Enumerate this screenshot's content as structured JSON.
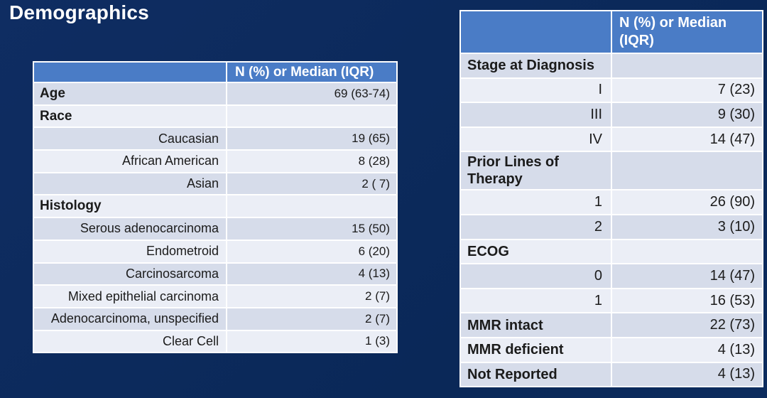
{
  "page": {
    "title": "Demographics"
  },
  "colors": {
    "background_navy": "#0B2A5C",
    "table_header_blue": "#4A7CC6",
    "row_dark": "#D6DCEA",
    "row_light": "#EBEEF6",
    "header_text": "#FFFFFF",
    "body_text": "#1B1B1B",
    "grid_lines": "#FFFFFF"
  },
  "left_table": {
    "header": [
      "",
      "N (%) or Median (IQR)"
    ],
    "rows": [
      {
        "label": "Age",
        "value": "69 (63-74)",
        "type": "category"
      },
      {
        "label": "Race",
        "value": "",
        "type": "category"
      },
      {
        "label": "Caucasian",
        "value": "19 (65)",
        "type": "sub"
      },
      {
        "label": "African American",
        "value": "8 (28)",
        "type": "sub"
      },
      {
        "label": "Asian",
        "value": "2 ( 7)",
        "type": "sub"
      },
      {
        "label": "Histology",
        "value": "",
        "type": "category"
      },
      {
        "label": "Serous adenocarcinoma",
        "value": "15 (50)",
        "type": "sub"
      },
      {
        "label": "Endometroid",
        "value": "6 (20)",
        "type": "sub"
      },
      {
        "label": "Carcinosarcoma",
        "value": "4 (13)",
        "type": "sub"
      },
      {
        "label": "Mixed epithelial carcinoma",
        "value": "2 (7)",
        "type": "sub"
      },
      {
        "label": "Adenocarcinoma, unspecified",
        "value": "2 (7)",
        "type": "sub"
      },
      {
        "label": "Clear Cell",
        "value": "1 (3)",
        "type": "sub"
      }
    ]
  },
  "right_table": {
    "header": [
      "",
      "N (%) or Median (IQR)"
    ],
    "rows": [
      {
        "label": "Stage at Diagnosis",
        "value": "",
        "type": "category"
      },
      {
        "label": "I",
        "value": "7 (23)",
        "type": "sub"
      },
      {
        "label": "III",
        "value": "9 (30)",
        "type": "sub"
      },
      {
        "label": "IV",
        "value": "14 (47)",
        "type": "sub"
      },
      {
        "label": "Prior Lines of Therapy",
        "value": "",
        "type": "category"
      },
      {
        "label": "1",
        "value": "26 (90)",
        "type": "sub"
      },
      {
        "label": "2",
        "value": "3 (10)",
        "type": "sub"
      },
      {
        "label": "ECOG",
        "value": "",
        "type": "category"
      },
      {
        "label": "0",
        "value": "14 (47)",
        "type": "sub"
      },
      {
        "label": "1",
        "value": "16 (53)",
        "type": "sub"
      },
      {
        "label": "MMR intact",
        "value": "22 (73)",
        "type": "category"
      },
      {
        "label": "MMR deficient",
        "value": "4 (13)",
        "type": "category"
      },
      {
        "label": "Not Reported",
        "value": "4 (13)",
        "type": "category"
      }
    ]
  }
}
